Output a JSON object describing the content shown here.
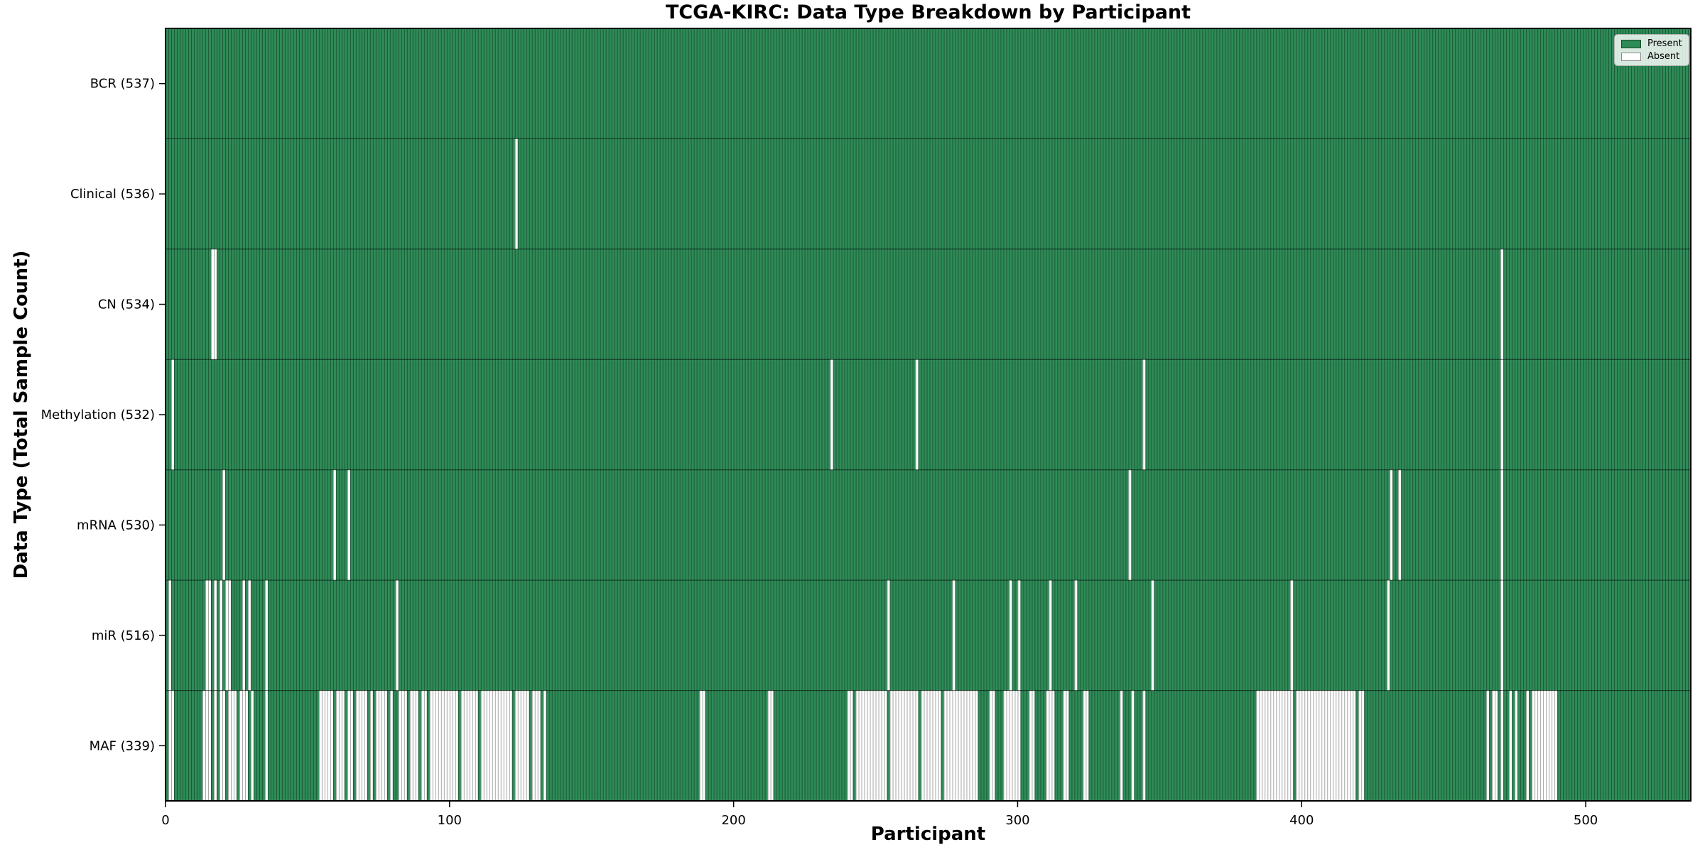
{
  "chart_data": {
    "type": "heatmap",
    "title": "TCGA-KIRC: Data Type Breakdown by Participant",
    "xlabel": "Participant",
    "ylabel": "Data Type (Total Sample Count)",
    "x_ticks": [
      0,
      100,
      200,
      300,
      400,
      500
    ],
    "x_range": [
      0,
      537
    ],
    "n_participants": 537,
    "present_color": "#2e8b57",
    "absent_color": "#ffffff",
    "grid": false,
    "legend_position": "upper right",
    "legend": [
      {
        "label": "Present",
        "color": "#2e8b57"
      },
      {
        "label": "Absent",
        "color": "#ffffff"
      }
    ],
    "rows": [
      {
        "label": "BCR (537)",
        "data_type": "BCR",
        "total_samples": 537,
        "absent_runs": []
      },
      {
        "label": "Clinical (536)",
        "data_type": "Clinical",
        "total_samples": 536,
        "absent_runs": [
          [
            123,
            123
          ]
        ]
      },
      {
        "label": "CN (534)",
        "data_type": "CN",
        "total_samples": 534,
        "absent_runs": [
          [
            16,
            17
          ],
          [
            470,
            470
          ]
        ]
      },
      {
        "label": "Methylation (532)",
        "data_type": "Methylation",
        "total_samples": 532,
        "absent_runs": [
          [
            2,
            2
          ],
          [
            234,
            234
          ],
          [
            264,
            264
          ],
          [
            344,
            344
          ],
          [
            470,
            470
          ]
        ]
      },
      {
        "label": "mRNA (530)",
        "data_type": "mRNA",
        "total_samples": 530,
        "absent_runs": [
          [
            20,
            20
          ],
          [
            59,
            59
          ],
          [
            64,
            64
          ],
          [
            339,
            339
          ],
          [
            431,
            431
          ],
          [
            434,
            434
          ],
          [
            470,
            470
          ]
        ]
      },
      {
        "label": "miR (516)",
        "data_type": "miR",
        "total_samples": 516,
        "absent_runs": [
          [
            1,
            1
          ],
          [
            14,
            15
          ],
          [
            17,
            17
          ],
          [
            19,
            19
          ],
          [
            21,
            22
          ],
          [
            27,
            27
          ],
          [
            29,
            29
          ],
          [
            35,
            35
          ],
          [
            81,
            81
          ],
          [
            254,
            254
          ],
          [
            277,
            277
          ],
          [
            297,
            297
          ],
          [
            300,
            300
          ],
          [
            311,
            311
          ],
          [
            320,
            320
          ],
          [
            347,
            347
          ],
          [
            396,
            396
          ],
          [
            430,
            430
          ],
          [
            470,
            470
          ]
        ]
      },
      {
        "label": "MAF (339)",
        "data_type": "MAF",
        "total_samples": 339,
        "absent_runs": [
          [
            1,
            2
          ],
          [
            13,
            15
          ],
          [
            17,
            17
          ],
          [
            19,
            20
          ],
          [
            22,
            24
          ],
          [
            26,
            28
          ],
          [
            30,
            30
          ],
          [
            35,
            35
          ],
          [
            54,
            58
          ],
          [
            60,
            62
          ],
          [
            64,
            65
          ],
          [
            67,
            70
          ],
          [
            72,
            72
          ],
          [
            74,
            77
          ],
          [
            79,
            79
          ],
          [
            82,
            84
          ],
          [
            86,
            88
          ],
          [
            90,
            91
          ],
          [
            93,
            102
          ],
          [
            104,
            109
          ],
          [
            111,
            121
          ],
          [
            123,
            127
          ],
          [
            129,
            131
          ],
          [
            133,
            133
          ],
          [
            188,
            189
          ],
          [
            212,
            213
          ],
          [
            240,
            241
          ],
          [
            243,
            253
          ],
          [
            255,
            264
          ],
          [
            266,
            272
          ],
          [
            274,
            285
          ],
          [
            290,
            291
          ],
          [
            295,
            300
          ],
          [
            304,
            305
          ],
          [
            310,
            312
          ],
          [
            316,
            317
          ],
          [
            323,
            324
          ],
          [
            336,
            336
          ],
          [
            340,
            340
          ],
          [
            344,
            344
          ],
          [
            384,
            396
          ],
          [
            398,
            418
          ],
          [
            420,
            421
          ],
          [
            465,
            465
          ],
          [
            467,
            468
          ],
          [
            470,
            470
          ],
          [
            473,
            473
          ],
          [
            475,
            475
          ],
          [
            479,
            479
          ],
          [
            481,
            489
          ]
        ]
      }
    ]
  }
}
